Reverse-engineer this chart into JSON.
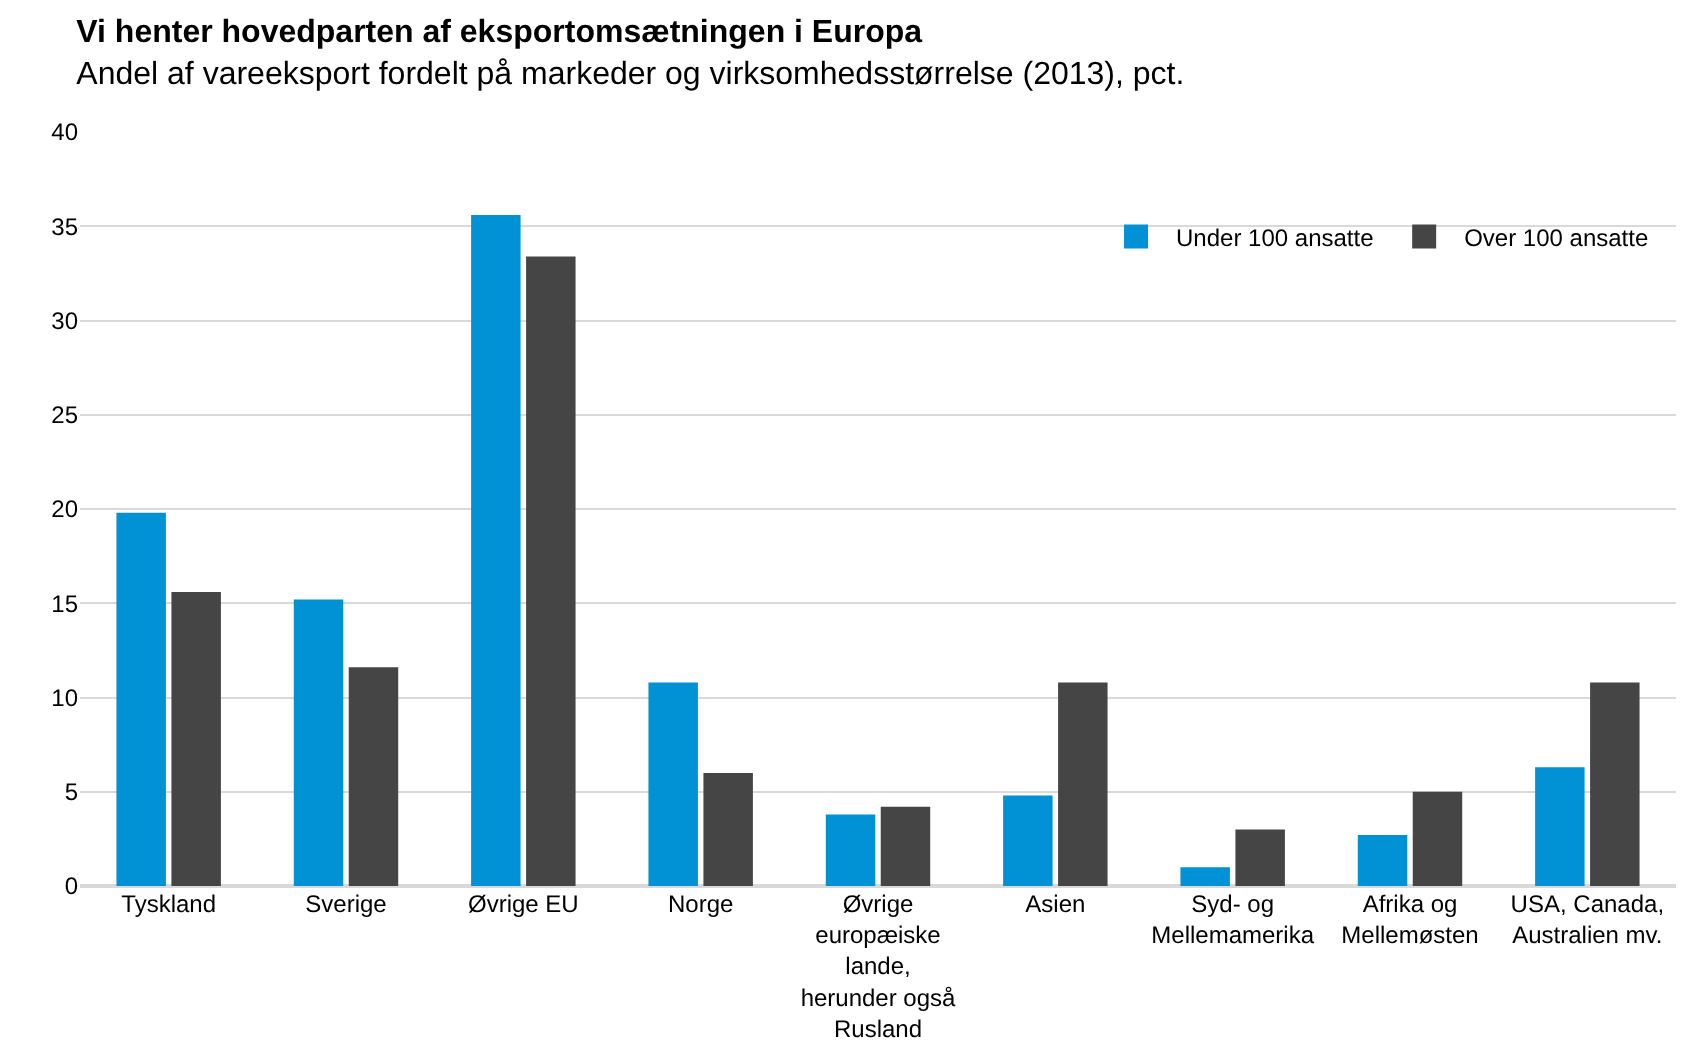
{
  "chart_data": {
    "type": "bar",
    "title": "Vi henter hovedparten af eksportomsætningen i Europa",
    "subtitle": "Andel af vareeksport fordelt på markeder og virksomhedsstørrelse (2013), pct.",
    "categories": [
      "Tyskland",
      "Sverige",
      "Øvrige EU",
      "Norge",
      "Øvrige\neuropæiske\nlande,\nherunder også\nRusland",
      "Asien",
      "Syd- og\nMellemamerika",
      "Afrika og\nMellemøsten",
      "USA, Canada,\nAustralien mv."
    ],
    "series": [
      {
        "name": "Under 100 ansatte",
        "color": "#0092d5",
        "values": [
          19.8,
          15.2,
          35.6,
          10.8,
          3.8,
          4.8,
          1.0,
          2.7,
          6.3
        ]
      },
      {
        "name": "Over 100 ansatte",
        "color": "#454545",
        "values": [
          15.6,
          11.6,
          33.4,
          6.0,
          4.2,
          10.8,
          3.0,
          5.0,
          10.8
        ]
      }
    ],
    "ylim": [
      0,
      40
    ],
    "yticks": [
      0,
      5,
      10,
      15,
      20,
      25,
      30,
      35,
      40
    ],
    "grid": "y",
    "legend": "top right"
  }
}
